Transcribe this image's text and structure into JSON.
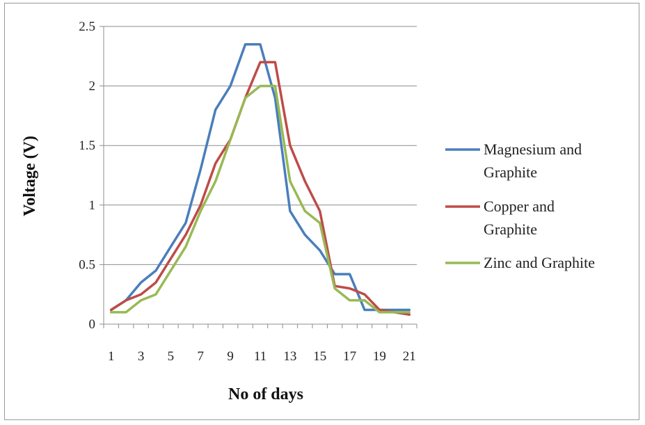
{
  "chart_data": {
    "type": "line",
    "title": "",
    "xlabel": "No of days",
    "ylabel": "Voltage (V)",
    "x": [
      1,
      2,
      3,
      4,
      5,
      6,
      7,
      8,
      9,
      10,
      11,
      12,
      13,
      14,
      15,
      16,
      17,
      18,
      19,
      20,
      21
    ],
    "xticks": [
      "1",
      "3",
      "5",
      "7",
      "9",
      "11",
      "13",
      "15",
      "17",
      "19",
      "21"
    ],
    "yticks": [
      "0",
      "0.5",
      "1",
      "1.5",
      "2",
      "2.5"
    ],
    "ylim": [
      0,
      2.5
    ],
    "grid": "horizontal",
    "legend_position": "right",
    "series": [
      {
        "name": "Magnesium and Graphite",
        "color": "#4a7ebb",
        "values": [
          0.12,
          0.2,
          0.35,
          0.45,
          0.65,
          0.85,
          1.3,
          1.8,
          2.0,
          2.35,
          2.35,
          1.9,
          0.95,
          0.75,
          0.62,
          0.42,
          0.42,
          0.12,
          0.12,
          0.12,
          0.12
        ]
      },
      {
        "name": "Copper and Graphite",
        "color": "#be4b48",
        "values": [
          0.12,
          0.2,
          0.25,
          0.35,
          0.55,
          0.75,
          1.0,
          1.35,
          1.55,
          1.9,
          2.2,
          2.2,
          1.5,
          1.2,
          0.95,
          0.32,
          0.3,
          0.25,
          0.12,
          0.1,
          0.08
        ]
      },
      {
        "name": "Zinc and Graphite",
        "color": "#98b954",
        "values": [
          0.1,
          0.1,
          0.2,
          0.25,
          0.45,
          0.65,
          0.95,
          1.2,
          1.55,
          1.9,
          2.0,
          2.0,
          1.2,
          0.95,
          0.85,
          0.3,
          0.2,
          0.2,
          0.1,
          0.1,
          0.1
        ]
      }
    ],
    "legend_lines": [
      [
        "Magnesium and",
        "Graphite"
      ],
      [
        "Copper and",
        "Graphite"
      ],
      [
        "Zinc and Graphite"
      ]
    ]
  }
}
